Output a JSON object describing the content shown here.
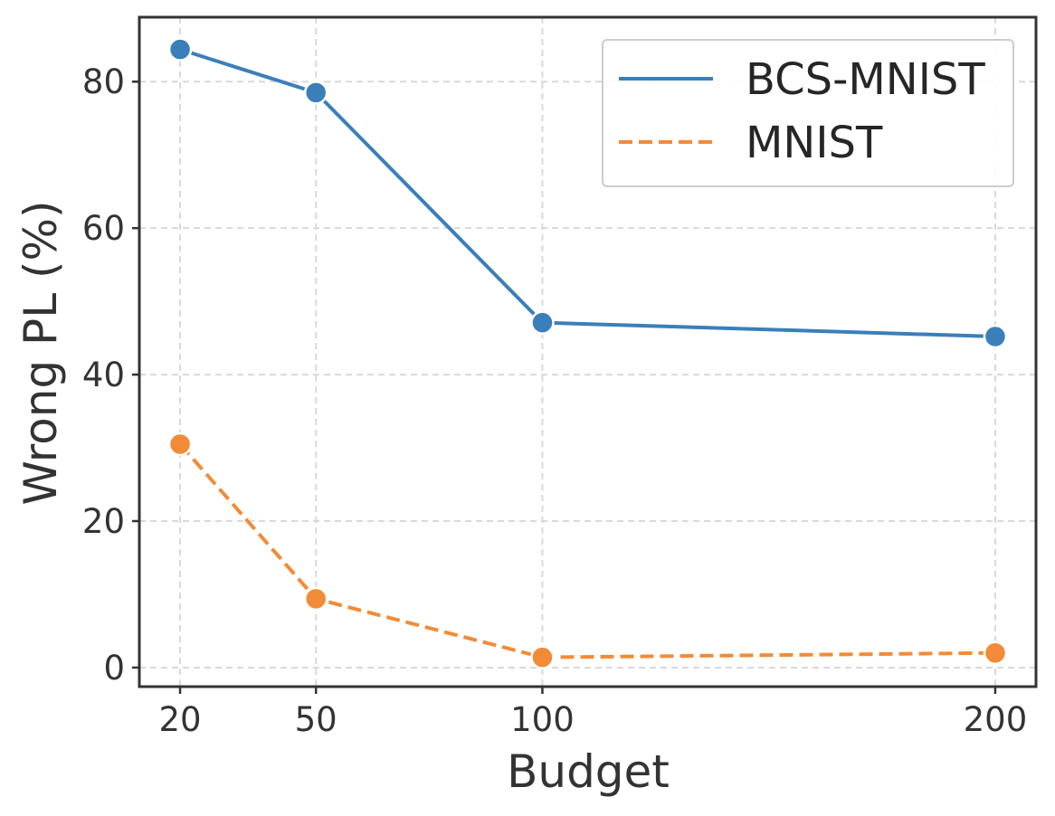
{
  "chart_data": {
    "type": "line",
    "x": [
      20,
      50,
      100,
      200
    ],
    "x_tick_labels": [
      "20",
      "50",
      "100",
      "200"
    ],
    "y_ticks": [
      0,
      20,
      40,
      60,
      80
    ],
    "y_tick_labels": [
      "0",
      "20",
      "40",
      "60",
      "80"
    ],
    "xlabel": "Budget",
    "ylabel": "Wrong PL (%)",
    "xlim": [
      11,
      209
    ],
    "ylim": [
      -2.6,
      88.8
    ],
    "grid": true,
    "legend_position": "top-right",
    "series": [
      {
        "name": "BCS-MNIST",
        "values": [
          84.4,
          78.5,
          47.1,
          45.2
        ],
        "color": "#3a7fba",
        "line_style": "solid",
        "marker": "circle"
      },
      {
        "name": "MNIST",
        "values": [
          30.5,
          9.4,
          1.4,
          2.0
        ],
        "color": "#f28b37",
        "line_style": "dashed",
        "marker": "circle"
      }
    ]
  }
}
